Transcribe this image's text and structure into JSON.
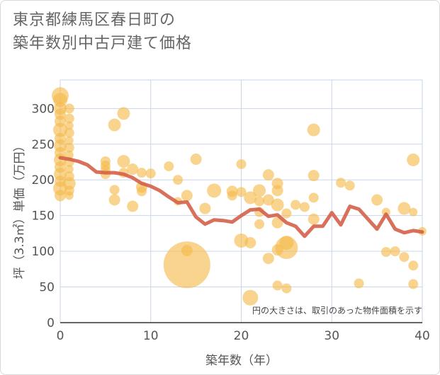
{
  "title_lines": [
    "東京都練馬区春日町の",
    "築年数別中古戸建て価格"
  ],
  "chart_data": {
    "type": "scatter",
    "xlabel": "築年数（年）",
    "ylabel": "坪（3.3㎡）単価（万円）",
    "xlim": [
      0,
      40
    ],
    "ylim": [
      0,
      340
    ],
    "xticks": [
      0,
      10,
      20,
      30,
      40
    ],
    "yticks": [
      0,
      50,
      100,
      150,
      200,
      250,
      300
    ],
    "grid": true,
    "note": "円の大きさは、取引のあった物件面積を示す",
    "colors": {
      "bubble": "#f5b94a",
      "line": "#d4604a",
      "grid": "#c9d6e8"
    },
    "bubbles": [
      [
        0,
        318,
        12
      ],
      [
        0,
        312,
        10
      ],
      [
        0,
        300,
        9
      ],
      [
        0,
        292,
        8
      ],
      [
        0,
        282,
        8
      ],
      [
        0,
        270,
        10
      ],
      [
        0,
        258,
        8
      ],
      [
        0,
        248,
        9
      ],
      [
        0,
        238,
        8
      ],
      [
        0,
        228,
        9
      ],
      [
        0,
        218,
        8
      ],
      [
        0,
        208,
        9
      ],
      [
        0,
        198,
        8
      ],
      [
        0,
        188,
        10
      ],
      [
        0,
        178,
        8
      ],
      [
        1,
        300,
        7
      ],
      [
        1,
        286,
        7
      ],
      [
        1,
        276,
        6
      ],
      [
        1,
        266,
        7
      ],
      [
        1,
        255,
        6
      ],
      [
        1,
        245,
        7
      ],
      [
        1,
        235,
        6
      ],
      [
        1,
        225,
        7
      ],
      [
        1,
        215,
        6
      ],
      [
        1,
        205,
        7
      ],
      [
        1,
        195,
        9
      ],
      [
        1,
        185,
        7
      ],
      [
        1,
        178,
        6
      ],
      [
        5,
        226,
        7
      ],
      [
        5,
        220,
        7
      ],
      [
        5,
        214,
        7
      ],
      [
        5,
        208,
        7
      ],
      [
        6,
        277,
        9
      ],
      [
        6,
        186,
        7
      ],
      [
        6,
        172,
        8
      ],
      [
        7,
        293,
        9
      ],
      [
        7,
        226,
        9
      ],
      [
        7,
        210,
        7
      ],
      [
        8,
        215,
        8
      ],
      [
        8,
        163,
        8
      ],
      [
        9,
        210,
        7
      ],
      [
        9,
        190,
        8
      ],
      [
        9,
        184,
        7
      ],
      [
        10,
        209,
        7
      ],
      [
        12,
        219,
        7
      ],
      [
        13,
        200,
        7
      ],
      [
        13,
        170,
        6
      ],
      [
        14,
        178,
        8
      ],
      [
        14,
        101,
        8
      ],
      [
        14,
        81,
        33
      ],
      [
        15,
        229,
        8
      ],
      [
        16,
        160,
        8
      ],
      [
        17,
        185,
        10
      ],
      [
        19,
        184,
        8
      ],
      [
        19,
        178,
        7
      ],
      [
        20,
        222,
        7
      ],
      [
        20,
        183,
        7
      ],
      [
        20,
        115,
        10
      ],
      [
        21,
        175,
        9
      ],
      [
        21,
        112,
        8
      ],
      [
        21,
        35,
        11
      ],
      [
        22,
        185,
        9
      ],
      [
        22,
        170,
        7
      ],
      [
        22,
        155,
        7
      ],
      [
        22,
        138,
        7
      ],
      [
        23,
        207,
        8
      ],
      [
        23,
        172,
        8
      ],
      [
        23,
        90,
        8
      ],
      [
        24,
        195,
        8
      ],
      [
        24,
        185,
        8
      ],
      [
        24,
        165,
        9
      ],
      [
        24,
        140,
        8
      ],
      [
        24,
        102,
        8
      ],
      [
        24,
        52,
        7
      ],
      [
        25,
        153,
        7
      ],
      [
        25,
        112,
        10
      ],
      [
        25,
        105,
        16
      ],
      [
        25,
        48,
        7
      ],
      [
        26,
        165,
        7
      ],
      [
        27,
        162,
        7
      ],
      [
        28,
        270,
        9
      ],
      [
        28,
        206,
        8
      ],
      [
        28,
        175,
        7
      ],
      [
        28,
        145,
        8
      ],
      [
        31,
        196,
        7
      ],
      [
        32,
        192,
        7
      ],
      [
        33,
        55,
        7
      ],
      [
        35,
        172,
        8
      ],
      [
        36,
        155,
        6
      ],
      [
        36,
        99,
        7
      ],
      [
        37,
        100,
        7
      ],
      [
        38,
        92,
        7
      ],
      [
        38,
        160,
        9
      ],
      [
        39,
        228,
        9
      ],
      [
        39,
        155,
        6
      ],
      [
        39,
        80,
        7
      ],
      [
        39,
        54,
        7
      ],
      [
        40,
        128,
        6
      ]
    ],
    "line": [
      [
        0,
        231
      ],
      [
        1,
        229
      ],
      [
        2,
        226
      ],
      [
        3,
        221
      ],
      [
        4,
        211
      ],
      [
        5,
        210
      ],
      [
        6,
        210
      ],
      [
        7,
        208
      ],
      [
        8,
        203
      ],
      [
        9,
        195
      ],
      [
        10,
        191
      ],
      [
        11,
        185
      ],
      [
        12,
        176
      ],
      [
        13,
        168
      ],
      [
        14,
        169
      ],
      [
        15,
        148
      ],
      [
        16,
        138
      ],
      [
        17,
        144
      ],
      [
        18,
        143
      ],
      [
        19,
        141
      ],
      [
        20,
        150
      ],
      [
        21,
        158
      ],
      [
        22,
        159
      ],
      [
        23,
        149
      ],
      [
        24,
        151
      ],
      [
        25,
        140
      ],
      [
        26,
        135
      ],
      [
        27,
        121
      ],
      [
        28,
        135
      ],
      [
        29,
        135
      ],
      [
        30,
        154
      ],
      [
        31,
        137
      ],
      [
        32,
        163
      ],
      [
        33,
        159
      ],
      [
        34,
        145
      ],
      [
        35,
        131
      ],
      [
        36,
        152
      ],
      [
        37,
        131
      ],
      [
        38,
        126
      ],
      [
        39,
        129
      ],
      [
        40,
        127
      ]
    ]
  }
}
